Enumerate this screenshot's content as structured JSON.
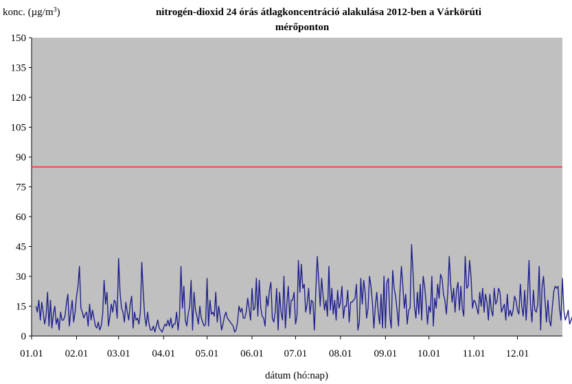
{
  "chart_data": {
    "type": "line",
    "title_line1": "nitrogén-dioxid  24 órás átlagkoncentráció  alakulása 2012-ben a Várkörúti",
    "title_line2": "mérőponton",
    "ylabel_prefix": "konc. (µg/m",
    "ylabel_sup": "3",
    "ylabel_suffix": ")",
    "xlabel": "dátum (hó:nap)",
    "ylim": [
      0,
      150
    ],
    "yticks": [
      "0",
      "15",
      "30",
      "45",
      "60",
      "75",
      "90",
      "105",
      "120",
      "135",
      "150"
    ],
    "xtick_labels": [
      "01.01",
      "02.01",
      "03.01",
      "04.01",
      "05.01",
      "06.01",
      "07.01",
      "08.01",
      "09.01",
      "10.01",
      "11.01",
      "12.01"
    ],
    "xtick_days": [
      0,
      31,
      60,
      91,
      121,
      152,
      182,
      213,
      244,
      274,
      305,
      335
    ],
    "x_range_days": [
      0,
      366
    ],
    "limit_line": {
      "value": 85,
      "color": "#ff2020"
    },
    "series": [
      {
        "color": "#1f1f8c",
        "start_day": 3,
        "values": [
          15,
          12,
          18,
          8,
          17,
          12,
          6,
          10,
          22,
          5,
          18,
          4,
          11,
          15,
          6,
          9,
          3,
          12,
          8,
          8,
          10,
          16,
          21,
          5,
          12,
          18,
          7,
          12,
          20,
          25,
          35,
          14,
          12,
          9,
          11,
          12,
          5,
          16,
          8,
          13,
          9,
          5,
          4,
          7,
          3,
          5,
          11,
          28,
          16,
          22,
          5,
          10,
          16,
          12,
          18,
          17,
          9,
          39,
          22,
          14,
          12,
          7,
          17,
          12,
          8,
          16,
          20,
          4,
          12,
          8,
          9,
          6,
          12,
          37,
          22,
          10,
          5,
          12,
          6,
          3,
          3,
          5,
          2,
          5,
          8,
          4,
          3,
          2,
          4,
          6,
          5,
          8,
          5,
          9,
          4,
          6,
          6,
          12,
          3,
          10,
          35,
          14,
          25,
          8,
          5,
          11,
          15,
          28,
          3,
          22,
          13,
          10,
          6,
          15,
          9,
          7,
          5,
          6,
          29,
          5,
          18,
          11,
          12,
          10,
          22,
          7,
          15,
          10,
          3,
          6,
          10,
          12,
          9,
          8,
          7,
          6,
          5,
          2,
          3,
          7,
          15,
          12,
          14,
          9,
          9,
          12,
          19,
          14,
          8,
          24,
          13,
          14,
          29,
          10,
          28,
          14,
          10,
          9,
          5,
          20,
          15,
          23,
          27,
          9,
          7,
          12,
          24,
          3,
          22,
          12,
          8,
          30,
          4,
          16,
          25,
          9,
          18,
          18,
          22,
          6,
          10,
          38,
          22,
          36,
          24,
          26,
          12,
          16,
          24,
          11,
          18,
          17,
          3,
          23,
          40,
          28,
          15,
          29,
          20,
          13,
          18,
          10,
          35,
          13,
          24,
          11,
          18,
          8,
          23,
          14,
          17,
          25,
          9,
          15,
          15,
          23,
          7,
          17,
          17,
          18,
          19,
          26,
          3,
          7,
          29,
          16,
          28,
          22,
          9,
          14,
          30,
          25,
          17,
          4,
          15,
          22,
          12,
          6,
          21,
          4,
          30,
          4,
          27,
          29,
          10,
          4,
          33,
          24,
          20,
          13,
          5,
          22,
          35,
          25,
          14,
          21,
          6,
          13,
          14,
          46,
          32,
          15,
          9,
          22,
          11,
          26,
          8,
          30,
          25,
          17,
          6,
          15,
          12,
          30,
          5,
          19,
          14,
          26,
          19,
          31,
          29,
          21,
          18,
          11,
          22,
          40,
          26,
          17,
          24,
          12,
          23,
          27,
          13,
          25,
          14,
          10,
          40,
          24,
          25,
          38,
          30,
          14,
          18,
          17,
          14,
          11,
          22,
          15,
          24,
          12,
          21,
          17,
          8,
          21,
          13,
          10,
          24,
          16,
          18,
          24,
          22,
          12,
          14,
          16,
          8,
          21,
          10,
          13,
          10,
          13,
          20,
          18,
          13,
          11,
          26,
          15,
          10,
          23,
          8,
          20,
          38,
          16,
          7,
          23,
          13,
          12,
          16,
          35,
          3,
          25,
          30,
          18,
          7,
          18,
          8,
          5,
          14,
          22,
          25,
          24,
          25,
          14,
          8,
          29,
          13,
          8,
          10,
          13,
          6,
          8,
          10,
          8,
          12,
          21
        ]
      }
    ]
  }
}
